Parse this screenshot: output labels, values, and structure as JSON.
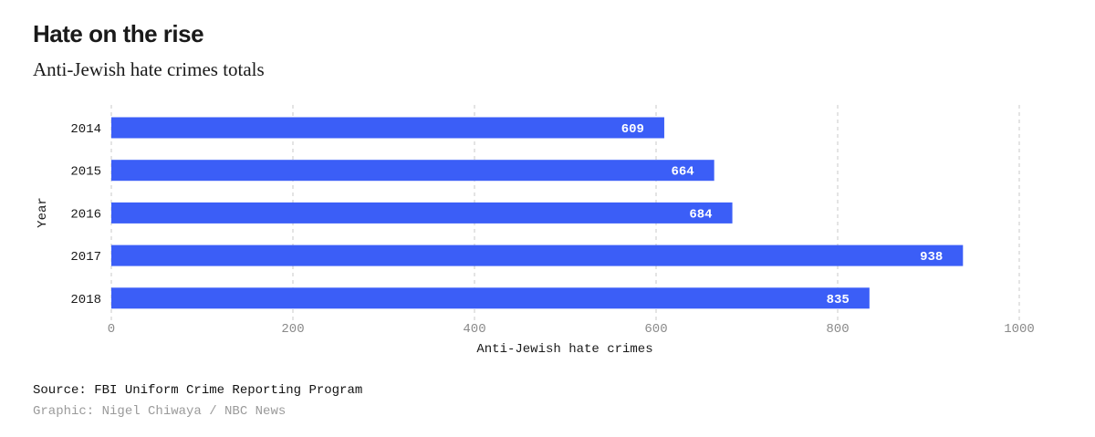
{
  "header": {
    "title": "Hate on the rise",
    "subtitle": "Anti-Jewish hate crimes totals"
  },
  "footer": {
    "source": "Source: FBI Uniform Crime Reporting Program",
    "credit": "Graphic: Nigel Chiwaya / NBC News"
  },
  "colors": {
    "bar": "#3b5ef7",
    "bar_label": "#ffffff",
    "grid": "#c8c8c8",
    "tick_label": "#8a8a8a",
    "category_label": "#1a1a1a"
  },
  "chart_data": {
    "type": "bar",
    "orientation": "horizontal",
    "title": "Hate on the rise",
    "subtitle": "Anti-Jewish hate crimes totals",
    "xlabel": "Anti-Jewish hate crimes",
    "ylabel": "Year",
    "categories": [
      "2014",
      "2015",
      "2016",
      "2017",
      "2018"
    ],
    "values": [
      609,
      664,
      684,
      938,
      835
    ],
    "xlim": [
      0,
      1000
    ],
    "xticks": [
      0,
      200,
      400,
      600,
      800,
      1000
    ],
    "grid": true,
    "grid_style": "dashed-vertical",
    "data_labels": true
  }
}
